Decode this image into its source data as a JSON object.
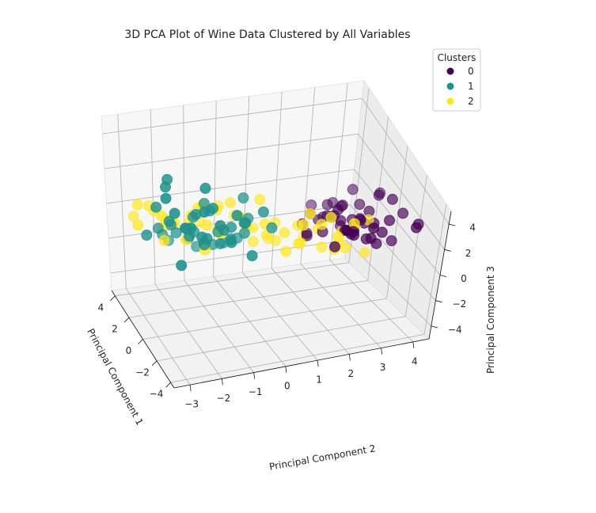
{
  "chart_data": {
    "type": "scatter",
    "title": "3D PCA Plot of Wine Data Clustered by All Variables",
    "xlabel": "Principal Component 1",
    "ylabel": "Principal Component 2",
    "zlabel": "Principal Component 3",
    "xlim": [
      -4.5,
      4.5
    ],
    "ylim": [
      -3.5,
      4.5
    ],
    "zlim": [
      -5,
      5
    ],
    "xticks": [
      -4,
      -2,
      0,
      2,
      4
    ],
    "yticks": [
      -3,
      -2,
      -1,
      0,
      1,
      2,
      3,
      4
    ],
    "zticks": [
      -4,
      -2,
      0,
      2,
      4
    ],
    "grid": true,
    "view": {
      "elev": 30,
      "azim": -20
    },
    "legend": {
      "title": "Clusters",
      "placement": "top-right",
      "entries": [
        "0",
        "1",
        "2"
      ]
    },
    "colors": {
      "0": "#440154",
      "1": "#21918c",
      "2": "#fde725"
    },
    "series": [
      {
        "name": "0",
        "points": [
          [
            -3.2,
            2.8,
            2.0
          ],
          [
            -2.9,
            2.3,
            1.5
          ],
          [
            -2.7,
            2.9,
            1.0
          ],
          [
            -2.6,
            3.1,
            0.6
          ],
          [
            -2.3,
            2.5,
            0.9
          ],
          [
            -2.1,
            2.7,
            1.8
          ],
          [
            -2.4,
            3.3,
            1.2
          ],
          [
            -1.9,
            3.0,
            0.4
          ],
          [
            -1.7,
            2.4,
            0.8
          ],
          [
            -1.5,
            2.9,
            1.3
          ],
          [
            -1.3,
            2.6,
            0.5
          ],
          [
            -1.2,
            3.4,
            0.9
          ],
          [
            -2.0,
            3.6,
            1.7
          ],
          [
            -1.8,
            3.8,
            0.2
          ],
          [
            -1.0,
            2.8,
            0.1
          ],
          [
            -0.9,
            3.2,
            0.7
          ],
          [
            -0.8,
            2.3,
            1.1
          ],
          [
            -0.6,
            3.0,
            0.0
          ],
          [
            -0.5,
            2.6,
            0.6
          ],
          [
            -0.3,
            3.5,
            1.0
          ],
          [
            -0.2,
            2.9,
            -0.2
          ],
          [
            0.0,
            3.1,
            0.3
          ],
          [
            0.2,
            2.7,
            0.8
          ],
          [
            0.4,
            3.3,
            -0.4
          ],
          [
            0.6,
            2.5,
            0.2
          ],
          [
            0.8,
            3.0,
            -0.6
          ],
          [
            1.0,
            3.6,
            0.5
          ],
          [
            1.2,
            2.8,
            -0.3
          ],
          [
            1.5,
            3.2,
            0.1
          ],
          [
            1.8,
            2.6,
            -0.8
          ],
          [
            2.0,
            3.4,
            -0.2
          ],
          [
            2.3,
            2.9,
            -1.0
          ],
          [
            2.6,
            3.1,
            -0.5
          ],
          [
            3.0,
            2.7,
            -1.2
          ],
          [
            3.3,
            3.5,
            -0.9
          ],
          [
            -3.6,
            3.9,
            2.6
          ],
          [
            -2.8,
            4.2,
            2.2
          ],
          [
            -1.6,
            4.1,
            1.9
          ],
          [
            0.5,
            4.0,
            1.4
          ],
          [
            -0.4,
            2.1,
            -0.1
          ],
          [
            1.6,
            2.2,
            -1.4
          ],
          [
            2.8,
            2.4,
            -1.6
          ],
          [
            3.9,
            3.0,
            -1.3
          ],
          [
            -1.1,
            3.9,
            2.4
          ],
          [
            0.9,
            2.0,
            -1.1
          ],
          [
            2.4,
            3.8,
            0.4
          ],
          [
            -2.5,
            1.9,
            0.3
          ],
          [
            1.3,
            4.3,
            0.9
          ]
        ]
      },
      {
        "name": "1",
        "points": [
          [
            -3.8,
            -1.8,
            1.7
          ],
          [
            -3.5,
            -2.6,
            1.4
          ],
          [
            -3.3,
            -1.2,
            2.1
          ],
          [
            -3.1,
            -2.2,
            0.9
          ],
          [
            -2.9,
            -1.5,
            1.2
          ],
          [
            -2.7,
            -2.9,
            1.8
          ],
          [
            -2.6,
            -0.8,
            1.5
          ],
          [
            -2.4,
            -1.9,
            0.6
          ],
          [
            -2.2,
            -2.5,
            1.0
          ],
          [
            -2.1,
            -1.1,
            0.3
          ],
          [
            -1.9,
            -1.6,
            1.9
          ],
          [
            -1.8,
            -2.3,
            0.5
          ],
          [
            -1.6,
            -0.6,
            1.1
          ],
          [
            -1.5,
            -1.3,
            0.0
          ],
          [
            -1.4,
            -2.0,
            1.4
          ],
          [
            -1.2,
            -0.9,
            0.7
          ],
          [
            -1.1,
            -1.7,
            -0.2
          ],
          [
            -0.9,
            -2.7,
            0.9
          ],
          [
            -0.8,
            -0.4,
            0.2
          ],
          [
            -0.6,
            -1.4,
            1.3
          ],
          [
            -0.5,
            -2.1,
            0.4
          ],
          [
            -0.3,
            -0.7,
            -0.4
          ],
          [
            -0.1,
            -1.8,
            0.8
          ],
          [
            0.1,
            -1.0,
            -0.1
          ],
          [
            0.3,
            -2.4,
            0.3
          ],
          [
            0.5,
            -0.5,
            -0.7
          ],
          [
            0.7,
            -1.6,
            -0.3
          ],
          [
            0.9,
            -0.2,
            -0.9
          ],
          [
            1.1,
            -1.2,
            -1.1
          ],
          [
            1.4,
            -2.0,
            -0.6
          ],
          [
            1.6,
            -0.8,
            -1.5
          ],
          [
            1.9,
            -1.5,
            -1.2
          ],
          [
            2.2,
            -0.3,
            -1.8
          ],
          [
            2.5,
            -1.1,
            -2.0
          ],
          [
            2.9,
            -1.9,
            -1.7
          ],
          [
            3.3,
            -0.6,
            -2.4
          ],
          [
            -3.0,
            -3.2,
            2.5
          ],
          [
            -2.0,
            -3.0,
            2.8
          ],
          [
            -4.0,
            -2.3,
            2.3
          ],
          [
            -1.0,
            -3.1,
            1.6
          ],
          [
            0.0,
            -0.1,
            0.6
          ],
          [
            -2.3,
            -0.2,
            2.0
          ],
          [
            -3.9,
            -0.9,
            0.4
          ],
          [
            1.2,
            -2.6,
            -0.2
          ],
          [
            -0.4,
            -3.3,
            0.1
          ],
          [
            -1.7,
            0.2,
            0.9
          ],
          [
            -2.8,
            -2.0,
            3.1
          ],
          [
            0.6,
            -1.3,
            1.2
          ],
          [
            -3.4,
            -2.9,
            -0.3
          ],
          [
            2.0,
            -2.3,
            -0.9
          ],
          [
            -0.2,
            -0.3,
            1.8
          ],
          [
            -1.3,
            -2.8,
            3.0
          ]
        ]
      },
      {
        "name": "2",
        "points": [
          [
            3.8,
            -2.8,
            -0.6
          ],
          [
            3.5,
            -2.2,
            -0.3
          ],
          [
            3.3,
            -1.6,
            -1.0
          ],
          [
            3.1,
            -0.9,
            -0.2
          ],
          [
            2.9,
            -2.5,
            0.3
          ],
          [
            2.7,
            -1.3,
            -0.8
          ],
          [
            2.5,
            -0.4,
            0.1
          ],
          [
            2.3,
            -1.9,
            -0.5
          ],
          [
            2.1,
            -1.0,
            0.4
          ],
          [
            1.9,
            -2.2,
            -0.1
          ],
          [
            1.7,
            -0.6,
            -0.7
          ],
          [
            1.5,
            -1.5,
            0.2
          ],
          [
            1.3,
            -2.4,
            -0.9
          ],
          [
            1.1,
            -0.8,
            0.6
          ],
          [
            0.9,
            0.1,
            -0.3
          ],
          [
            0.7,
            -1.2,
            0.0
          ],
          [
            0.5,
            -1.9,
            -0.6
          ],
          [
            0.3,
            -0.2,
            0.5
          ],
          [
            0.1,
            -0.9,
            -0.2
          ],
          [
            -0.1,
            0.4,
            0.3
          ],
          [
            -0.3,
            -1.5,
            -0.8
          ],
          [
            -0.5,
            0.9,
            0.0
          ],
          [
            -0.7,
            -0.4,
            0.7
          ],
          [
            -0.9,
            1.3,
            -0.4
          ],
          [
            -1.1,
            0.2,
            0.2
          ],
          [
            -1.3,
            1.8,
            0.9
          ],
          [
            -1.5,
            0.7,
            -0.5
          ],
          [
            -1.7,
            2.2,
            0.4
          ],
          [
            -1.9,
            1.1,
            1.2
          ],
          [
            -2.1,
            2.0,
            -0.1
          ],
          [
            3.6,
            -0.7,
            -1.3
          ],
          [
            3.2,
            0.3,
            -0.9
          ],
          [
            2.8,
            0.8,
            -1.5
          ],
          [
            2.4,
            1.4,
            -1.1
          ],
          [
            2.0,
            0.6,
            -1.8
          ],
          [
            1.6,
            1.9,
            -0.9
          ],
          [
            1.2,
            1.1,
            -1.4
          ],
          [
            0.8,
            2.3,
            -0.7
          ],
          [
            0.4,
            1.6,
            -1.2
          ],
          [
            0.0,
            2.8,
            -0.4
          ],
          [
            -0.4,
            2.1,
            -1.0
          ],
          [
            -0.8,
            3.0,
            0.6
          ],
          [
            -1.2,
            2.6,
            -0.6
          ],
          [
            -2.6,
            2.4,
            1.8
          ],
          [
            -3.0,
            1.6,
            2.3
          ],
          [
            4.1,
            -1.8,
            -1.6
          ],
          [
            3.9,
            0.0,
            -2.0
          ],
          [
            1.8,
            -3.1,
            -0.2
          ],
          [
            2.6,
            2.4,
            -2.2
          ],
          [
            0.2,
            -2.7,
            0.8
          ],
          [
            -0.6,
            3.4,
            -1.4
          ],
          [
            1.4,
            3.2,
            -2.0
          ],
          [
            3.4,
            1.5,
            -2.6
          ],
          [
            -1.6,
            3.1,
            1.4
          ],
          [
            0.6,
            0.4,
            1.3
          ],
          [
            2.2,
            -3.0,
            0.7
          ],
          [
            -2.2,
            1.2,
            2.0
          ],
          [
            1.0,
            -0.4,
            1.0
          ]
        ]
      }
    ]
  }
}
